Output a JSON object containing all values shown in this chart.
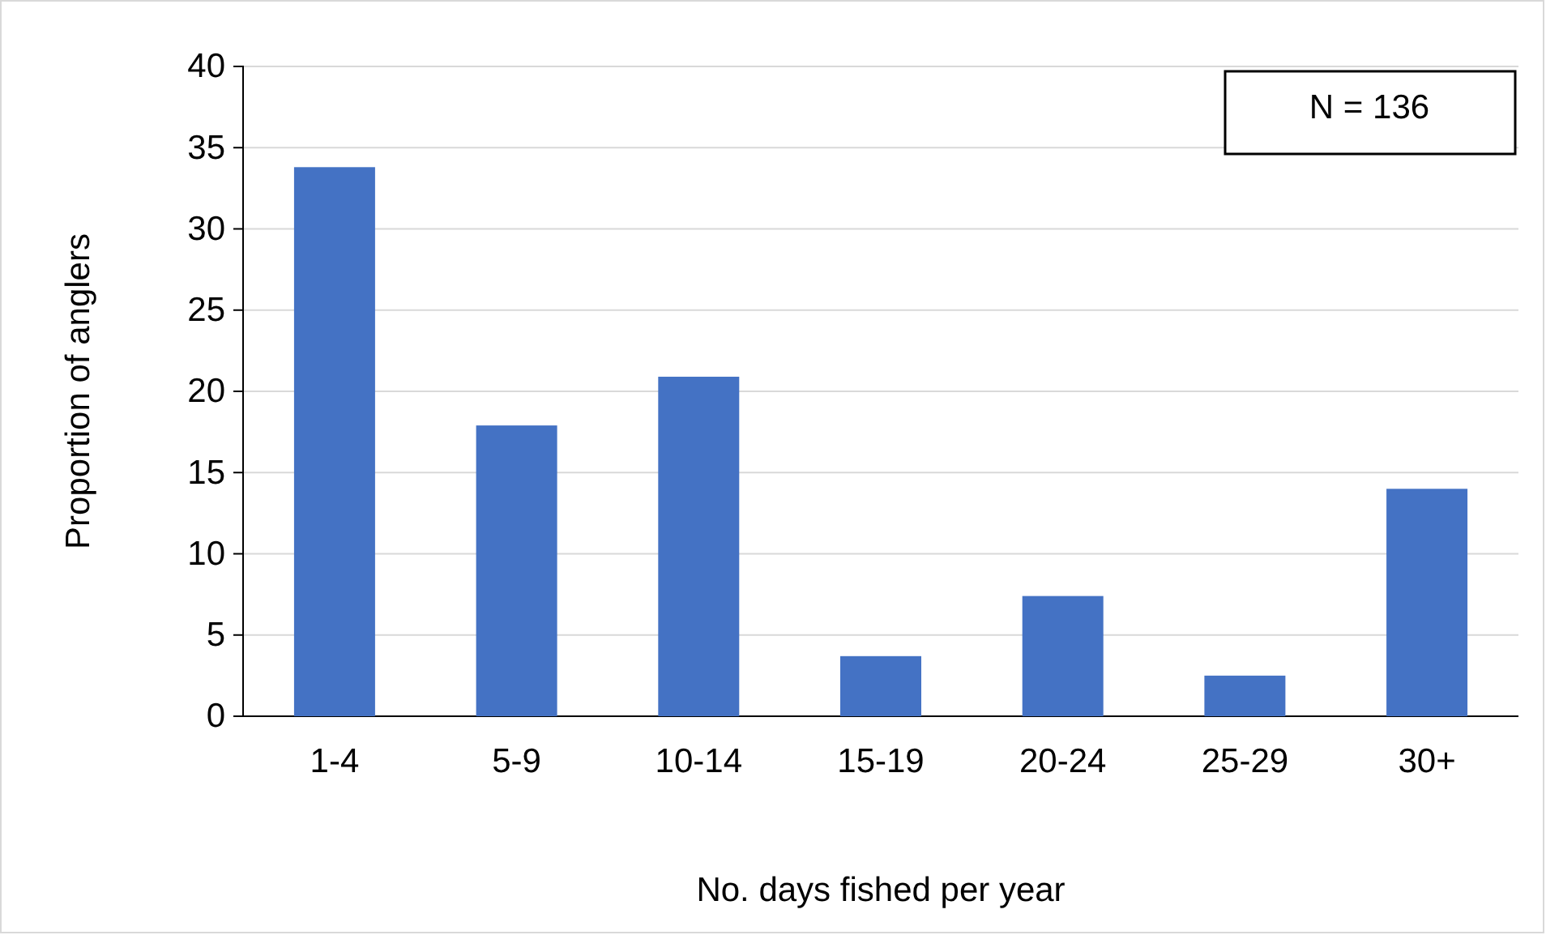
{
  "chart_data": {
    "type": "bar",
    "xlabel": "No. days fished per year",
    "ylabel": "Proportion of anglers",
    "categories": [
      "1-4",
      "5-9",
      "10-14",
      "15-19",
      "20-24",
      "25-29",
      "30+"
    ],
    "values": [
      33.8,
      17.9,
      20.9,
      3.7,
      7.4,
      2.5,
      14.0
    ],
    "color": "#4472c4",
    "ylim": [
      0,
      40
    ],
    "yticks": [
      0,
      5,
      10,
      15,
      20,
      25,
      30,
      35,
      40
    ],
    "grid": "y",
    "annotations": [
      "N = 136"
    ]
  }
}
